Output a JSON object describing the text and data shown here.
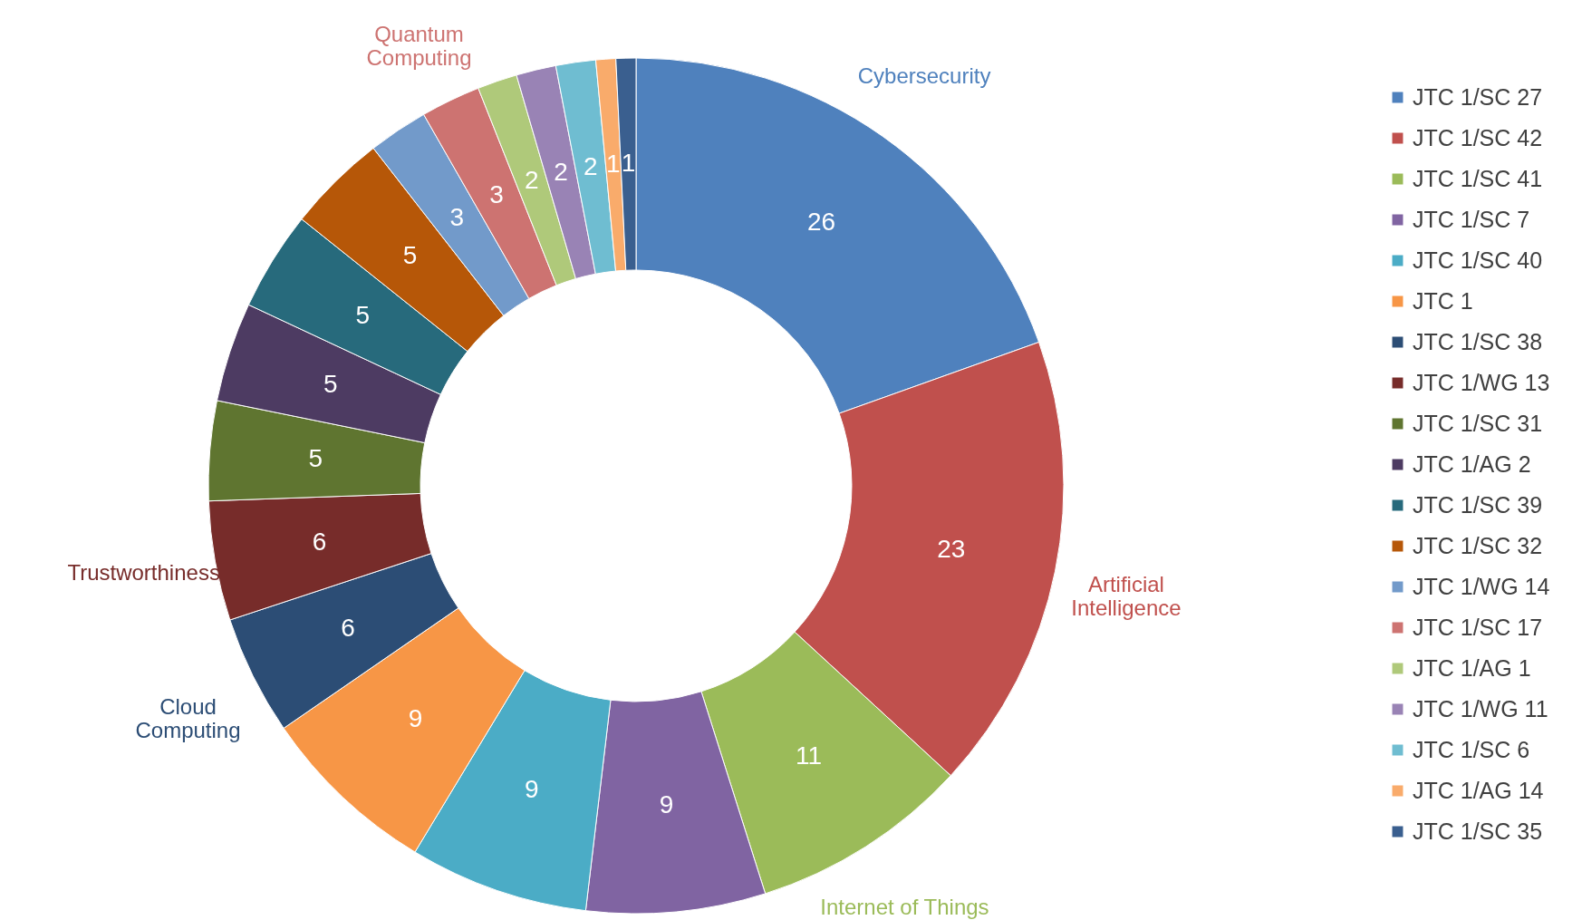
{
  "chart_data": {
    "type": "donut",
    "categories": [
      "JTC 1/SC 27",
      "JTC 1/SC 42",
      "JTC 1/SC 41",
      "JTC 1/SC 7",
      "JTC 1/SC 40",
      "JTC 1",
      "JTC 1/SC 38",
      "JTC 1/WG 13",
      "JTC 1/SC 31",
      "JTC 1/AG 2",
      "JTC 1/SC 39",
      "JTC 1/SC 32",
      "JTC 1/WG 14",
      "JTC 1/SC 17",
      "JTC 1/AG 1",
      "JTC 1/WG 11",
      "JTC 1/SC 6",
      "JTC 1/AG 14",
      "JTC 1/SC 35"
    ],
    "values": [
      26,
      23,
      11,
      9,
      9,
      9,
      6,
      6,
      5,
      5,
      5,
      5,
      3,
      3,
      2,
      2,
      2,
      1,
      1
    ],
    "colors": [
      "#4f81bd",
      "#c0504d",
      "#9bbb59",
      "#8064a2",
      "#4bacc6",
      "#f79646",
      "#2c4d75",
      "#772c2a",
      "#5f7530",
      "#4d3b62",
      "#276a7c",
      "#b65708",
      "#729aca",
      "#cd7371",
      "#afc97a",
      "#9983b5",
      "#6fbdd1",
      "#f9ab6b",
      "#3a5f8f"
    ],
    "data_labels": true,
    "legend": "right",
    "annotations": [
      {
        "text": "Cybersecurity",
        "x": "JTC 1/SC 27"
      },
      {
        "text": "Artificial\nIntelligence",
        "x": "JTC 1/SC 42"
      },
      {
        "text": "Internet of Things",
        "x": "JTC 1/SC 41"
      },
      {
        "text": "Cloud\nComputing",
        "x": "JTC 1/SC 38"
      },
      {
        "text": "Trustworthiness",
        "x": "JTC 1/WG 13"
      },
      {
        "text": "Quantum\nComputing",
        "x": "JTC 1/SC 17"
      }
    ]
  }
}
